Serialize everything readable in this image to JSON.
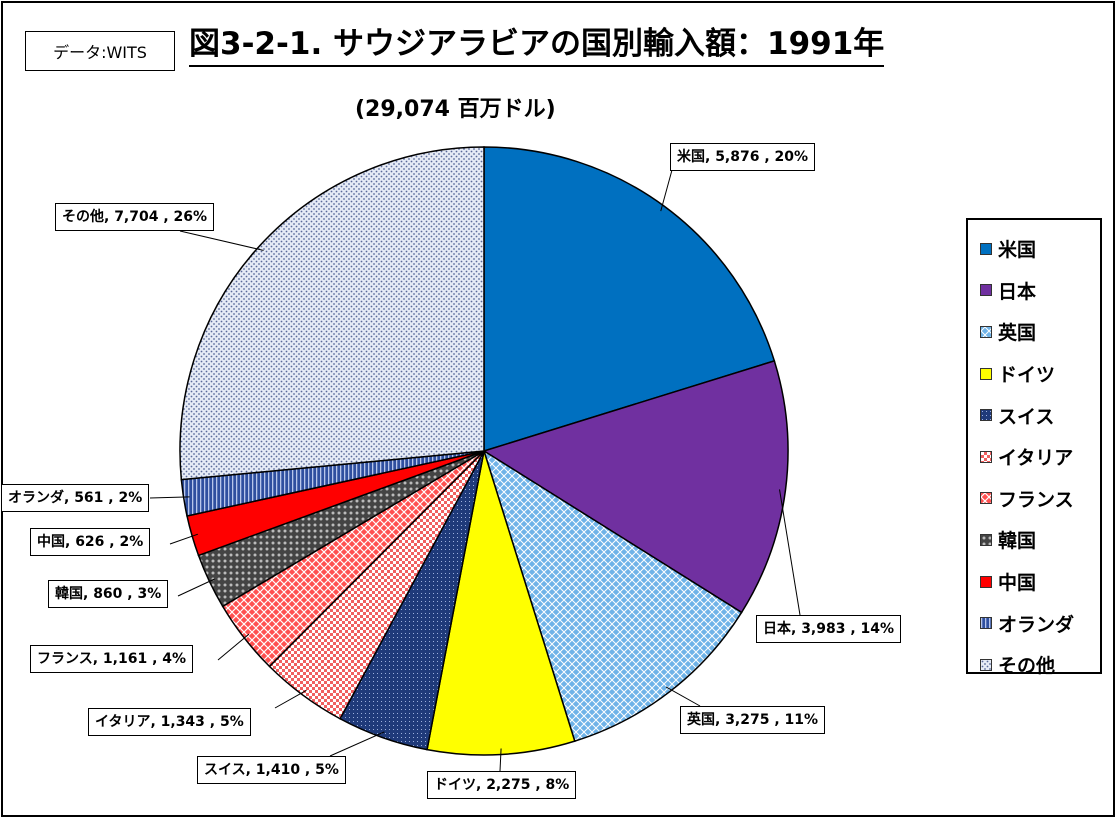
{
  "source_label": "データ:WITS",
  "title": "図3-2-1. サウジアラビアの国別輸入額：1991年",
  "total_label": "(29,074 百万ドル)",
  "chart_data": {
    "type": "pie",
    "title": "図3-2-1. サウジアラビアの国別輸入額：1991年",
    "unit": "百万ドル",
    "total": 29074,
    "slices": [
      {
        "name": "米国",
        "value": 5876,
        "percent": 20,
        "label": "米国, 5,876 , 20%",
        "color": "#0070C0"
      },
      {
        "name": "日本",
        "value": 3983,
        "percent": 14,
        "label": "日本, 3,983 , 14%",
        "color": "#7030A0"
      },
      {
        "name": "英国",
        "value": 3275,
        "percent": 11,
        "label": "英国, 3,275 , 11%",
        "color": "#6FB3E8"
      },
      {
        "name": "ドイツ",
        "value": 2275,
        "percent": 8,
        "label": "ドイツ, 2,275 , 8%",
        "color": "#FFFF00"
      },
      {
        "name": "スイス",
        "value": 1410,
        "percent": 5,
        "label": "スイス, 1,410 , 5%",
        "color": "#1F3A7A"
      },
      {
        "name": "イタリア",
        "value": 1343,
        "percent": 5,
        "label": "イタリア, 1,343 , 5%",
        "color": "#F06060"
      },
      {
        "name": "フランス",
        "value": 1161,
        "percent": 4,
        "label": "フランス, 1,161 , 4%",
        "color": "#FF5050"
      },
      {
        "name": "韓国",
        "value": 860,
        "percent": 3,
        "label": "韓国, 860 , 3%",
        "color": "#555555"
      },
      {
        "name": "中国",
        "value": 626,
        "percent": 2,
        "label": "中国, 626 , 2%",
        "color": "#FF0000"
      },
      {
        "name": "オランダ",
        "value": 561,
        "percent": 2,
        "label": "オランダ, 561 , 2%",
        "color": "#2F4F9F"
      },
      {
        "name": "その他",
        "value": 7704,
        "percent": 26,
        "label": "その他, 7,704 , 26%",
        "color": "#C9D3EA"
      }
    ],
    "legend_position": "right"
  }
}
